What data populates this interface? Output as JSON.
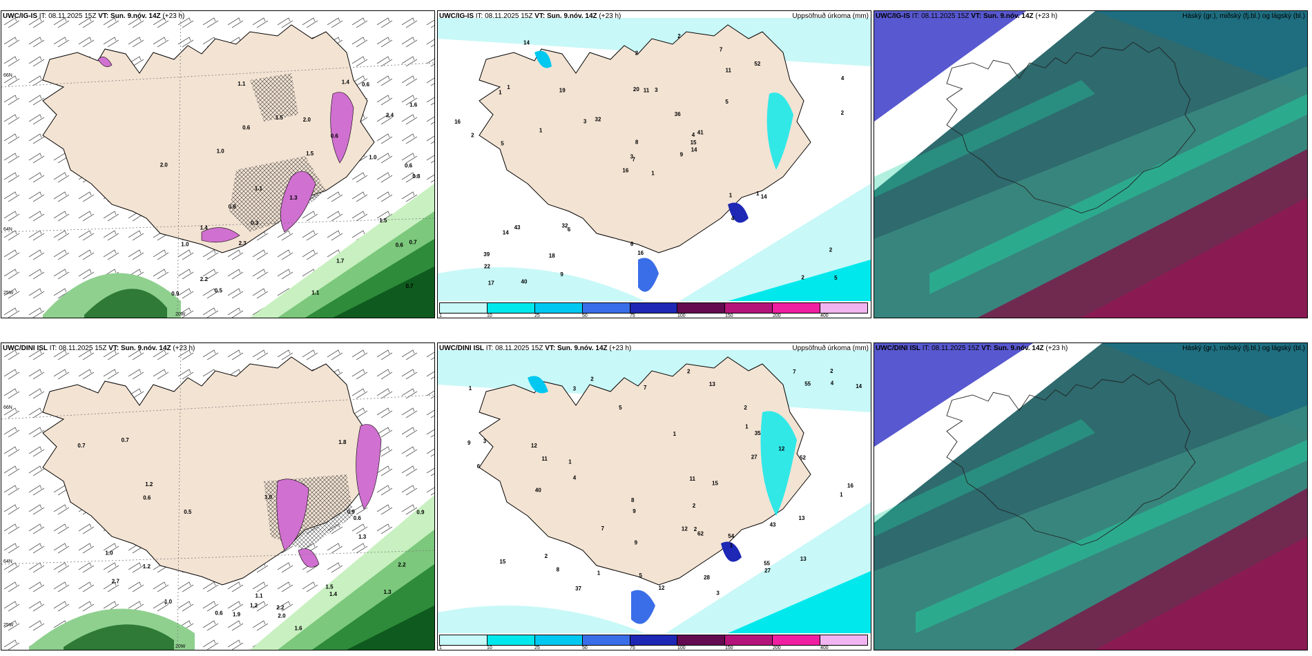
{
  "panels": [
    {
      "id": "top-left",
      "model": "UWC/IG-IS",
      "it_label": "IT:",
      "it": "08.11.2025 15Z",
      "vt_label": "VT:",
      "vt": "Sun. 9.nóv. 14Z",
      "lead": "(+23 h)",
      "subtitle": "",
      "lat_labels": [
        "66N",
        "64N",
        "25W"
      ],
      "lon_label": "20W"
    },
    {
      "id": "top-middle",
      "model": "UWC/IG-IS",
      "it_label": "IT:",
      "it": "08.11.2025 15Z",
      "vt_label": "VT:",
      "vt": "Sun. 9.nóv. 14Z",
      "lead": "(+23 h)",
      "subtitle": "Uppsöfnuð úrkoma (mm)",
      "lat_labels": [
        "66N",
        "64N"
      ]
    },
    {
      "id": "top-right",
      "model": "UWC/IG-IS",
      "it_label": "IT:",
      "it": "08.11.2025 15Z",
      "vt_label": "VT:",
      "vt": "Sun. 9.nóv. 14Z",
      "lead": "(+23 h)",
      "subtitle": "Háský (gr.), miðský (fj.bl.) og lágský (bl.)"
    },
    {
      "id": "bottom-left",
      "model": "UWC/DINI ISL",
      "it_label": "IT:",
      "it": "08.11.2025 15Z",
      "vt_label": "VT:",
      "vt": "Sun. 9.nóv. 14Z",
      "lead": "(+23 h)",
      "subtitle": "",
      "lat_labels": [
        "66N",
        "64N",
        "25W"
      ],
      "lon_label": "20W"
    },
    {
      "id": "bottom-middle",
      "model": "UWC/DINI ISL",
      "it_label": "IT:",
      "it": "08.11.2025 15Z",
      "vt_label": "VT:",
      "vt": "Sun. 9.nóv. 14Z",
      "lead": "(+23 h)",
      "subtitle": "Uppsöfnuð úrkoma (mm)",
      "lat_labels": [
        "66N",
        "64N"
      ]
    },
    {
      "id": "bottom-right",
      "model": "UWC/DINI ISL",
      "it_label": "IT:",
      "it": "08.11.2025 15Z",
      "vt_label": "VT:",
      "vt": "Sun. 9.nóv. 14Z",
      "lead": "(+23 h)",
      "subtitle": "Háský (gr.), miðský (fj.bl.) og lágský (bl.)"
    }
  ],
  "colorbar": {
    "ticks": [
      "1",
      "10",
      "25",
      "50",
      "75",
      "100",
      "150",
      "200",
      "400"
    ],
    "colors": [
      "#c8f8f8",
      "#00e8ec",
      "#00c8f0",
      "#3a6ee8",
      "#1e28b4",
      "#640a50",
      "#b4147a",
      "#f01ea0",
      "#f0b4f0"
    ]
  },
  "precip_labels_top": [
    "1",
    "1",
    "7",
    "39",
    "4",
    "6",
    "7",
    "3",
    "11",
    "9",
    "14",
    "5",
    "5",
    "4",
    "16",
    "5",
    "40",
    "20",
    "36",
    "43",
    "32",
    "22",
    "18",
    "11",
    "41",
    "14",
    "1",
    "2",
    "2",
    "1",
    "2",
    "3",
    "6",
    "8",
    "19",
    "52",
    "32",
    "2",
    "2",
    "1",
    "2",
    "3",
    "1",
    "4",
    "9",
    "16",
    "15",
    "17",
    "16",
    "14",
    "14"
  ],
  "precip_labels_bottom": [
    "3",
    "3",
    "2",
    "12",
    "12",
    "28",
    "1",
    "4",
    "9",
    "8",
    "15",
    "9",
    "8",
    "2",
    "27",
    "7",
    "6",
    "55",
    "43",
    "52",
    "55",
    "62",
    "37",
    "27",
    "15",
    "35",
    "40",
    "11",
    "12",
    "5",
    "1",
    "2",
    "2",
    "1",
    "2",
    "5",
    "2",
    "3",
    "16",
    "54",
    "7",
    "11",
    "14",
    "13",
    "13",
    "13",
    "12",
    "9",
    "2",
    "4",
    "7",
    "1",
    "1",
    "1",
    "1"
  ],
  "wind_values_top": [
    "0.6",
    "0.6",
    "0.6",
    "0.8",
    "1.1",
    "0.7",
    "0.3",
    "1.4",
    "0.6",
    "2.4",
    "1.0",
    "1.5",
    "1.0",
    "2.3",
    "1.0",
    "1.3",
    "0.8",
    "2.0",
    "1.1",
    "1.5",
    "0.7",
    "2.0",
    "2.2",
    "1.4",
    "1.5",
    "0.6",
    "0.9",
    "1.7",
    "1.1",
    "1.6",
    "0.5"
  ],
  "wind_values_bottom": [
    "0.6",
    "1.1",
    "1.0",
    "0.7",
    "0.9",
    "2.7",
    "1.2",
    "1.0",
    "0.9",
    "1.2",
    "1.2",
    "1.3",
    "1.9",
    "1.6",
    "1.8",
    "2.0",
    "1.5",
    "1.4",
    "2.2",
    "0.6",
    "0.7",
    "1.3",
    "0.6",
    "0.5",
    "2.2",
    "1.0"
  ]
}
